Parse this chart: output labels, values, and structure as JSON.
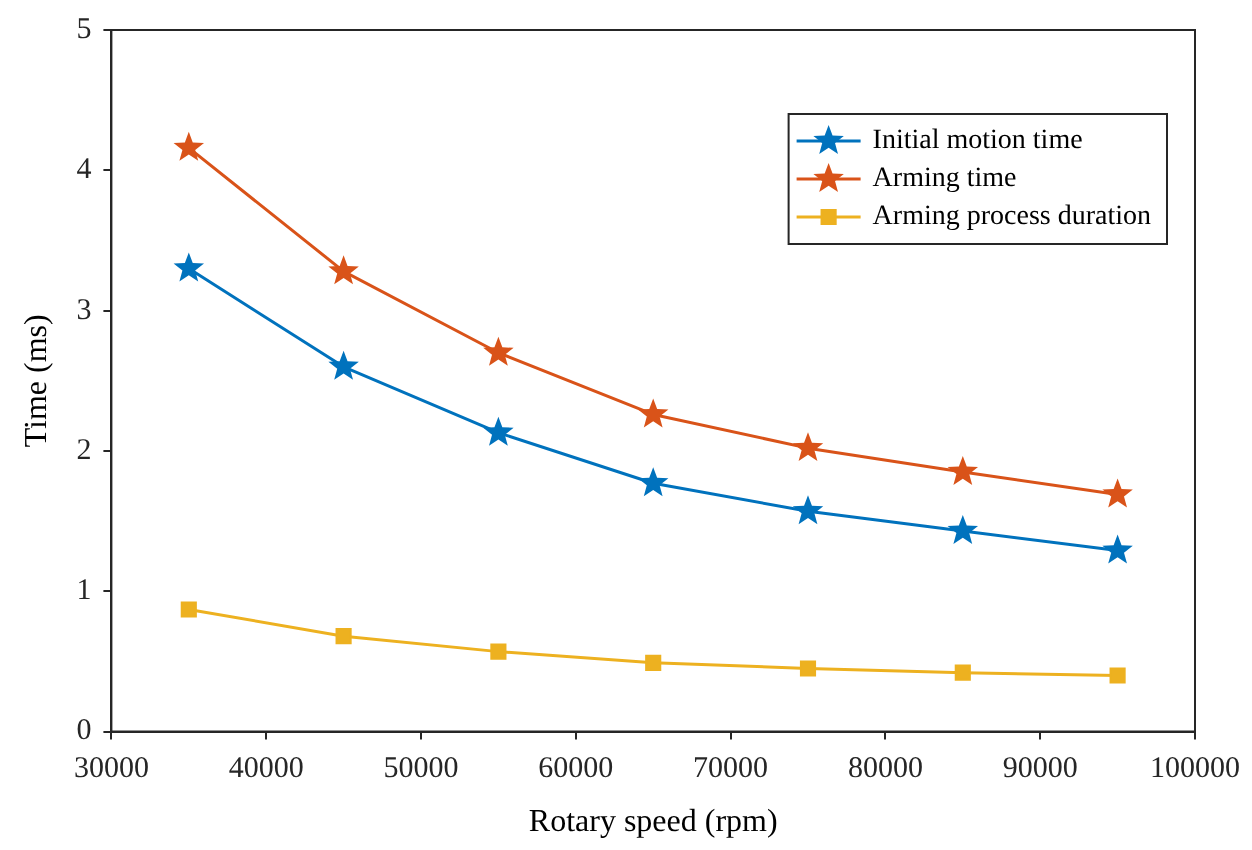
{
  "chart_data": {
    "type": "line",
    "xlabel": "Rotary speed (rpm)",
    "ylabel": "Time (ms)",
    "x": [
      35000,
      45000,
      55000,
      65000,
      75000,
      85000,
      95000
    ],
    "series": [
      {
        "name": "Initial motion time",
        "color": "#0072bd",
        "marker": "star",
        "values": [
          3.3,
          2.6,
          2.13,
          1.77,
          1.57,
          1.43,
          1.29
        ]
      },
      {
        "name": "Arming time",
        "color": "#d95319",
        "marker": "star",
        "values": [
          4.16,
          3.28,
          2.7,
          2.26,
          2.02,
          1.85,
          1.69
        ]
      },
      {
        "name": "Arming process duration",
        "color": "#edb120",
        "marker": "square",
        "values": [
          0.87,
          0.68,
          0.57,
          0.49,
          0.45,
          0.42,
          0.4
        ]
      }
    ],
    "xlim": [
      30000,
      100000
    ],
    "xticks": [
      30000,
      40000,
      50000,
      60000,
      70000,
      80000,
      90000,
      100000
    ],
    "ylim": [
      0,
      5
    ],
    "yticks": [
      0,
      1,
      2,
      3,
      4,
      5
    ],
    "grid": false,
    "legend": "top right",
    "line_style": "solid"
  }
}
